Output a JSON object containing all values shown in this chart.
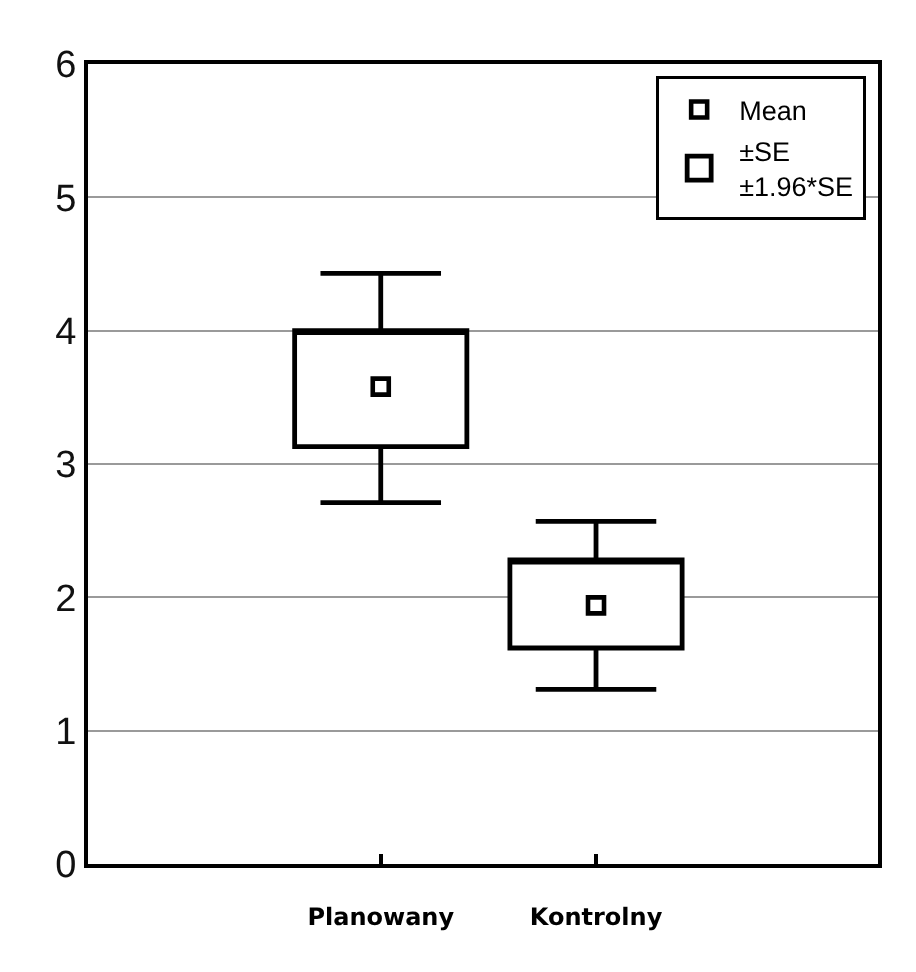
{
  "chart_data": {
    "type": "box",
    "categories": [
      "Planowany",
      "Kontrolny"
    ],
    "ylim": [
      0,
      6
    ],
    "yticks": [
      0,
      1,
      2,
      3,
      4,
      5,
      6
    ],
    "grid": "y",
    "legend": "top right",
    "series": [
      {
        "name": "Mean",
        "type": "scatter",
        "x": [
          "Planowany",
          "Kontrolny"
        ],
        "values": [
          3.58,
          1.94
        ],
        "color": "#000000",
        "marker": "square"
      },
      {
        "name": "±SE\n±1.96*SE",
        "type": "box",
        "color": "#000000",
        "boxes": [
          {
            "low": 2.71,
            "q1": 3.13,
            "q3": 4.0,
            "high": 4.43
          },
          {
            "low": 1.31,
            "q1": 1.62,
            "q3": 2.28,
            "high": 2.57
          }
        ]
      }
    ]
  }
}
